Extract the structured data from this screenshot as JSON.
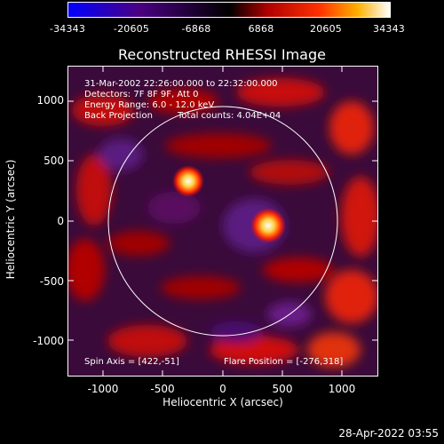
{
  "colorbar": {
    "tick_labels": [
      "-34343",
      "-20605",
      "-6868",
      "6868",
      "20605",
      "34343"
    ],
    "range": [
      -34343,
      34343
    ],
    "palette": [
      "#0000ff",
      "#4b0082",
      "#000000",
      "#ff0000",
      "#ffa500",
      "#ffffff"
    ]
  },
  "plot": {
    "title": "Reconstructed RHESSI Image",
    "xlabel": "Heliocentric X (arcsec)",
    "ylabel": "Heliocentric Y (arcsec)",
    "x_range": [
      -1300,
      1300
    ],
    "y_range": [
      -1300,
      1300
    ],
    "x_ticks": [
      "-1000",
      "-500",
      "0",
      "500",
      "1000"
    ],
    "y_ticks": [
      "1000",
      "500",
      "0",
      "-500",
      "-1000"
    ],
    "solar_limb_radius_arcsec": 960,
    "info_lines": [
      "31-Mar-2002 22:26:00.000 to 22:32:00.000",
      "Detectors: 7F 8F 9F, Att 0",
      "Energy Range: 6.0 - 12.0 keV",
      "Back Projection"
    ],
    "total_counts": "Total counts: 4.04E+04",
    "spin_axis": "Spin Axis = [422,-51]",
    "flare_position": "Flare Position = [-276,318]",
    "sources": [
      {
        "x": -276,
        "y": 318
      },
      {
        "x": 380,
        "y": -40
      }
    ]
  },
  "footer": {
    "timestamp": "28-Apr-2022 03:55"
  }
}
